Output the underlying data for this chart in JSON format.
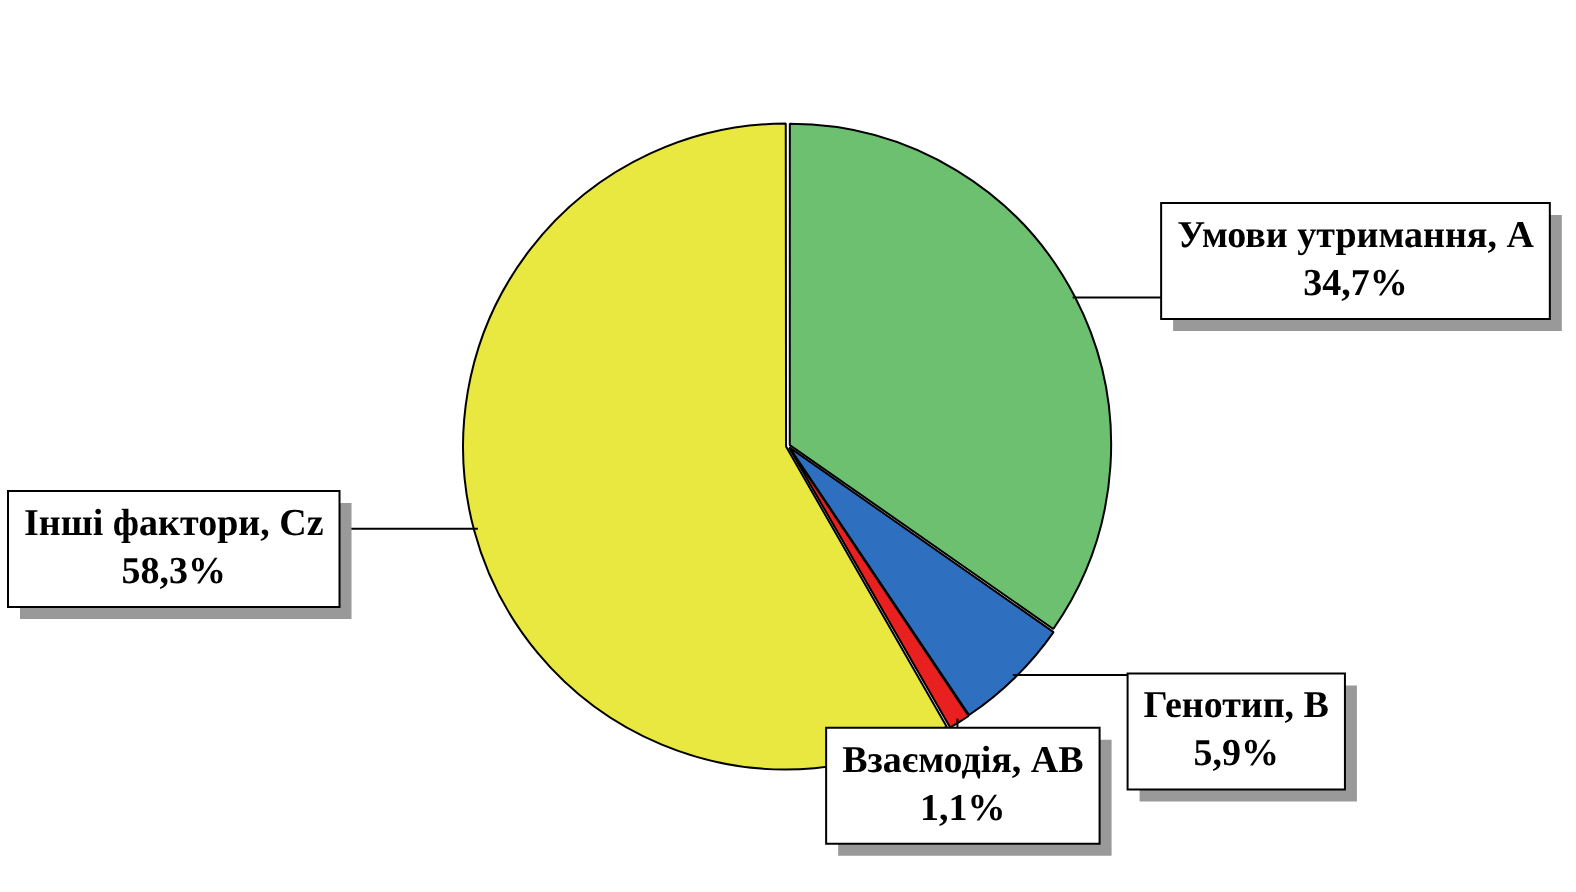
{
  "chart_data": {
    "type": "pie",
    "categories": [
      "Умови утримання, А",
      "Генотип, В",
      "Взаємодія, АВ",
      "Інші фактори, Cz"
    ],
    "values": [
      34.7,
      5.9,
      1.1,
      58.3
    ],
    "colors": [
      "#6cc070",
      "#2f6fc0",
      "#e82020",
      "#e8e840"
    ],
    "value_labels": [
      "34,7%",
      "5,9%",
      "1,1%",
      "58,3%"
    ],
    "legend": false
  }
}
